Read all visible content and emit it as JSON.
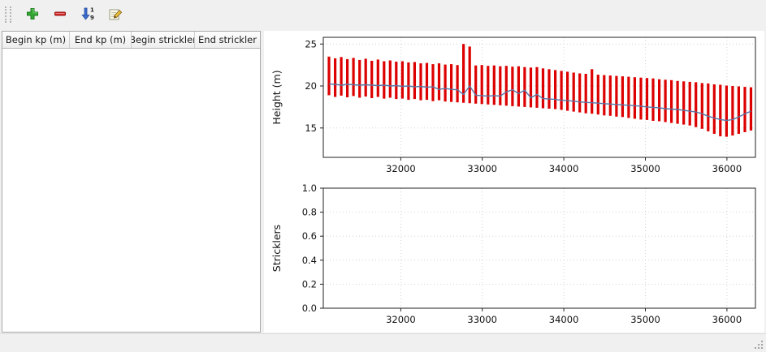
{
  "window": {
    "bg": "#f0f0f0"
  },
  "toolbar": {
    "buttons": [
      {
        "id": "add-row",
        "icon": "plus-icon"
      },
      {
        "id": "remove-row",
        "icon": "minus-icon"
      },
      {
        "id": "sort-rows",
        "icon": "sort-numeric-icon"
      },
      {
        "id": "edit-row",
        "icon": "pencil-icon"
      }
    ]
  },
  "table": {
    "columns": [
      "Begin kp (m)",
      "End kp (m)",
      "Begin strickler",
      "End strickler"
    ],
    "rows": []
  },
  "chart_data": [
    {
      "type": "line",
      "title": "",
      "xlabel": "",
      "ylabel": "Height (m)",
      "xlim": [
        31050,
        36350
      ],
      "ylim": [
        11.5,
        25.8
      ],
      "xticks": [
        32000,
        33000,
        34000,
        35000,
        36000
      ],
      "xtick_labels": [
        "32000",
        "33000",
        "34000",
        "35000",
        "36000"
      ],
      "yticks": [
        15,
        20,
        25
      ],
      "ytick_labels": [
        "15",
        "20",
        "25"
      ],
      "grid": true,
      "legend": "none",
      "bar_color": "#dd0000",
      "line_color": "#5878a8",
      "series_note": "points are [kp, min_height, max_height, mean_height]; red vertical bars span min..max, blue line is mean",
      "points": [
        [
          31120,
          18.9,
          23.5,
          20.25
        ],
        [
          31195,
          18.7,
          23.3,
          20.2
        ],
        [
          31270,
          18.85,
          23.45,
          20.1
        ],
        [
          31345,
          18.65,
          23.2,
          20.2
        ],
        [
          31420,
          18.8,
          23.35,
          20.15
        ],
        [
          31495,
          18.6,
          23.1,
          20.1
        ],
        [
          31570,
          18.75,
          23.25,
          20.15
        ],
        [
          31645,
          18.55,
          23.0,
          20.1
        ],
        [
          31720,
          18.7,
          23.15,
          20.05
        ],
        [
          31795,
          18.5,
          22.95,
          20.1
        ],
        [
          31870,
          18.6,
          23.05,
          20.0
        ],
        [
          31945,
          18.45,
          22.9,
          20.05
        ],
        [
          32020,
          18.5,
          22.95,
          19.95
        ],
        [
          32095,
          18.35,
          22.8,
          20.0
        ],
        [
          32170,
          18.45,
          22.85,
          19.9
        ],
        [
          32245,
          18.3,
          22.7,
          19.95
        ],
        [
          32320,
          18.35,
          22.75,
          19.85
        ],
        [
          32395,
          18.2,
          22.6,
          19.9
        ],
        [
          32470,
          18.3,
          22.7,
          19.6
        ],
        [
          32545,
          18.15,
          22.55,
          19.7
        ],
        [
          32620,
          18.1,
          22.6,
          19.6
        ],
        [
          32695,
          18.05,
          22.5,
          19.55
        ],
        [
          32770,
          18.0,
          25.0,
          19.0
        ],
        [
          32845,
          17.95,
          24.7,
          20.0
        ],
        [
          32920,
          17.9,
          22.45,
          18.9
        ],
        [
          32995,
          17.85,
          22.5,
          18.85
        ],
        [
          33070,
          17.8,
          22.4,
          18.8
        ],
        [
          33145,
          17.75,
          22.45,
          18.85
        ],
        [
          33220,
          17.7,
          22.35,
          18.8
        ],
        [
          33295,
          17.65,
          22.4,
          19.3
        ],
        [
          33370,
          17.6,
          22.3,
          19.55
        ],
        [
          33445,
          17.55,
          22.35,
          19.1
        ],
        [
          33520,
          17.5,
          22.25,
          19.5
        ],
        [
          33595,
          17.45,
          22.2,
          18.6
        ],
        [
          33670,
          17.4,
          22.25,
          19.0
        ],
        [
          33745,
          17.35,
          22.1,
          18.5
        ],
        [
          33820,
          17.3,
          22.0,
          18.45
        ],
        [
          33895,
          17.25,
          21.9,
          18.4
        ],
        [
          33970,
          17.15,
          21.8,
          18.3
        ],
        [
          34045,
          17.05,
          21.7,
          18.25
        ],
        [
          34120,
          16.95,
          21.6,
          18.2
        ],
        [
          34195,
          16.85,
          21.5,
          18.1
        ],
        [
          34270,
          16.75,
          21.45,
          18.05
        ],
        [
          34345,
          16.7,
          22.0,
          18.0
        ],
        [
          34420,
          16.6,
          21.35,
          17.95
        ],
        [
          34495,
          16.5,
          21.3,
          17.9
        ],
        [
          34570,
          16.45,
          21.25,
          17.85
        ],
        [
          34645,
          16.35,
          21.2,
          17.8
        ],
        [
          34720,
          16.3,
          21.15,
          17.75
        ],
        [
          34795,
          16.2,
          21.1,
          17.7
        ],
        [
          34870,
          16.1,
          21.05,
          17.65
        ],
        [
          34945,
          16.0,
          21.0,
          17.6
        ],
        [
          35020,
          15.95,
          20.95,
          17.5
        ],
        [
          35095,
          15.85,
          20.9,
          17.45
        ],
        [
          35170,
          15.8,
          20.8,
          17.4
        ],
        [
          35245,
          15.7,
          20.75,
          17.3
        ],
        [
          35320,
          15.6,
          20.7,
          17.25
        ],
        [
          35395,
          15.5,
          20.6,
          17.2
        ],
        [
          35470,
          15.4,
          20.55,
          17.1
        ],
        [
          35545,
          15.3,
          20.5,
          17.0
        ],
        [
          35620,
          15.1,
          20.45,
          16.9
        ],
        [
          35695,
          14.9,
          20.35,
          16.7
        ],
        [
          35770,
          14.6,
          20.3,
          16.4
        ],
        [
          35845,
          14.3,
          20.2,
          16.2
        ],
        [
          35920,
          14.0,
          20.15,
          16.0
        ],
        [
          35995,
          13.95,
          20.05,
          15.9
        ],
        [
          36070,
          14.1,
          20.0,
          16.0
        ],
        [
          36145,
          14.3,
          19.95,
          16.3
        ],
        [
          36220,
          14.5,
          19.9,
          16.7
        ],
        [
          36295,
          14.7,
          19.85,
          17.0
        ]
      ]
    },
    {
      "type": "line",
      "title": "",
      "xlabel": "",
      "ylabel": "Stricklers",
      "xlim": [
        31050,
        36350
      ],
      "ylim": [
        0,
        1
      ],
      "xticks": [
        32000,
        33000,
        34000,
        35000,
        36000
      ],
      "xtick_labels": [
        "32000",
        "33000",
        "34000",
        "35000",
        "36000"
      ],
      "yticks": [
        0,
        0.2,
        0.4,
        0.6,
        0.8,
        1
      ],
      "ytick_labels": [
        "0.0",
        "0.2",
        "0.4",
        "0.6",
        "0.8",
        "1.0"
      ],
      "grid": true,
      "legend": "none",
      "points": null
    }
  ]
}
